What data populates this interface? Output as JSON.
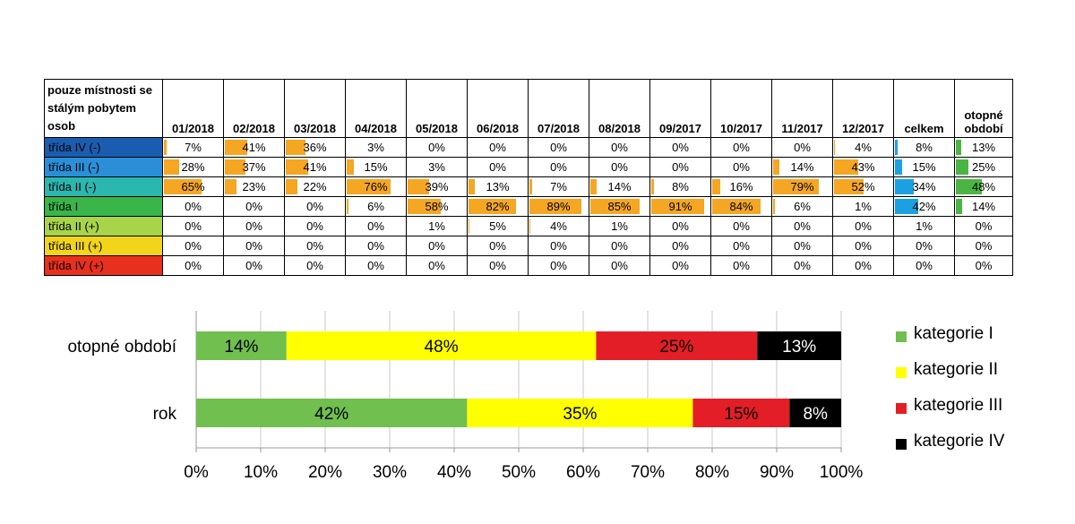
{
  "table": {
    "corner_label": "pouze místnosti se stálým pobytem osob",
    "columns": [
      "01/2018",
      "02/2018",
      "03/2018",
      "04/2018",
      "05/2018",
      "06/2018",
      "07/2018",
      "08/2018",
      "09/2017",
      "10/2017",
      "11/2017",
      "12/2017",
      "celkem",
      "otopné období"
    ],
    "rows": [
      {
        "label": "třída IV (-)",
        "label_color": "#1a5db0",
        "values": [
          "7%",
          "41%",
          "36%",
          "3%",
          "0%",
          "0%",
          "0%",
          "0%",
          "0%",
          "0%",
          "0%",
          "4%",
          "8%",
          "13%"
        ]
      },
      {
        "label": "třída III (-)",
        "label_color": "#2a8fd6",
        "values": [
          "28%",
          "37%",
          "41%",
          "15%",
          "3%",
          "0%",
          "0%",
          "0%",
          "0%",
          "0%",
          "14%",
          "43%",
          "15%",
          "25%"
        ]
      },
      {
        "label": "třída II (-)",
        "label_color": "#2bb6b0",
        "values": [
          "65%",
          "23%",
          "22%",
          "76%",
          "39%",
          "13%",
          "7%",
          "14%",
          "8%",
          "16%",
          "79%",
          "52%",
          "34%",
          "48%"
        ]
      },
      {
        "label": "třída I",
        "label_color": "#39b54a",
        "values": [
          "0%",
          "0%",
          "0%",
          "6%",
          "58%",
          "82%",
          "89%",
          "85%",
          "91%",
          "84%",
          "6%",
          "1%",
          "42%",
          "14%"
        ]
      },
      {
        "label": "třída II (+)",
        "label_color": "#a8d44a",
        "values": [
          "0%",
          "0%",
          "0%",
          "0%",
          "1%",
          "5%",
          "4%",
          "1%",
          "0%",
          "0%",
          "0%",
          "0%",
          "1%",
          "0%"
        ]
      },
      {
        "label": "třída III (+)",
        "label_color": "#f2d41a",
        "values": [
          "0%",
          "0%",
          "0%",
          "0%",
          "0%",
          "0%",
          "0%",
          "0%",
          "0%",
          "0%",
          "0%",
          "0%",
          "0%",
          "0%"
        ]
      },
      {
        "label": "třída IV (+)",
        "label_color": "#e8301f",
        "values": [
          "0%",
          "0%",
          "0%",
          "0%",
          "0%",
          "0%",
          "0%",
          "0%",
          "0%",
          "0%",
          "0%",
          "0%",
          "0%",
          "0%"
        ]
      }
    ],
    "bar_colors": {
      "months": "#f5a623",
      "celkem": "#1ba1e2",
      "otopne": "#4bb543"
    }
  },
  "chart_data": {
    "type": "bar",
    "orientation": "horizontal",
    "stacked": "100%",
    "categories": [
      "otopné období",
      "rok"
    ],
    "series": [
      {
        "name": "kategorie I",
        "color": "#70bf4f",
        "values": [
          14,
          42
        ]
      },
      {
        "name": "kategorie II",
        "color": "#ffff00",
        "values": [
          48,
          35
        ]
      },
      {
        "name": "kategorie III",
        "color": "#e41e26",
        "values": [
          25,
          15
        ]
      },
      {
        "name": "kategorie IV",
        "color": "#000000",
        "values": [
          13,
          8
        ]
      }
    ],
    "xlim": [
      0,
      100
    ],
    "xticks": [
      "0%",
      "10%",
      "20%",
      "30%",
      "40%",
      "50%",
      "60%",
      "70%",
      "80%",
      "90%",
      "100%"
    ],
    "grid": true,
    "legend": "right"
  }
}
